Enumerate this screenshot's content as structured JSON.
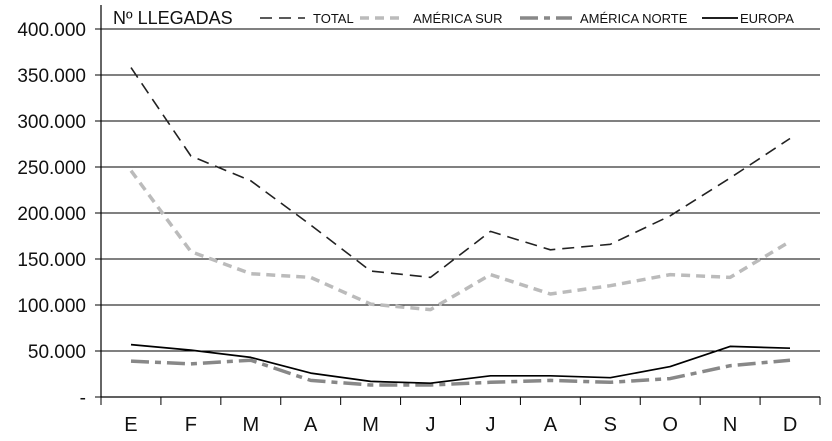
{
  "chart_data": {
    "type": "line",
    "title": "",
    "ylabel": "Nº LLEGADAS",
    "xlabel": "",
    "categories": [
      "E",
      "F",
      "M",
      "A",
      "M",
      "J",
      "J",
      "A",
      "S",
      "O",
      "N",
      "D"
    ],
    "ylim": [
      0,
      400000
    ],
    "yticks": [
      0,
      50000,
      100000,
      150000,
      200000,
      250000,
      300000,
      350000,
      400000
    ],
    "ytick_labels": [
      "-",
      "50.000",
      "100.000",
      "150.000",
      "200.000",
      "250.000",
      "300.000",
      "350.000",
      "400.000"
    ],
    "grid": true,
    "legend_position": "top",
    "series": [
      {
        "name": "TOTAL",
        "color": "#222222",
        "values": [
          358000,
          262000,
          235000,
          187000,
          137000,
          130000,
          180000,
          160000,
          166000,
          197000,
          238000,
          281000
        ]
      },
      {
        "name": "AMÉRICA SUR",
        "color": "#bbbbbb",
        "values": [
          246000,
          158000,
          134000,
          130000,
          101000,
          95000,
          133000,
          112000,
          121000,
          133000,
          130000,
          169000
        ]
      },
      {
        "name": "AMÉRICA NORTE",
        "color": "#888888",
        "values": [
          39000,
          36000,
          40000,
          18000,
          13000,
          13000,
          16000,
          18000,
          16000,
          20000,
          34000,
          40000
        ]
      },
      {
        "name": "EUROPA",
        "color": "#000000",
        "values": [
          57000,
          51000,
          43000,
          26000,
          17000,
          15000,
          23000,
          23000,
          21000,
          33000,
          55000,
          53000
        ]
      }
    ]
  }
}
